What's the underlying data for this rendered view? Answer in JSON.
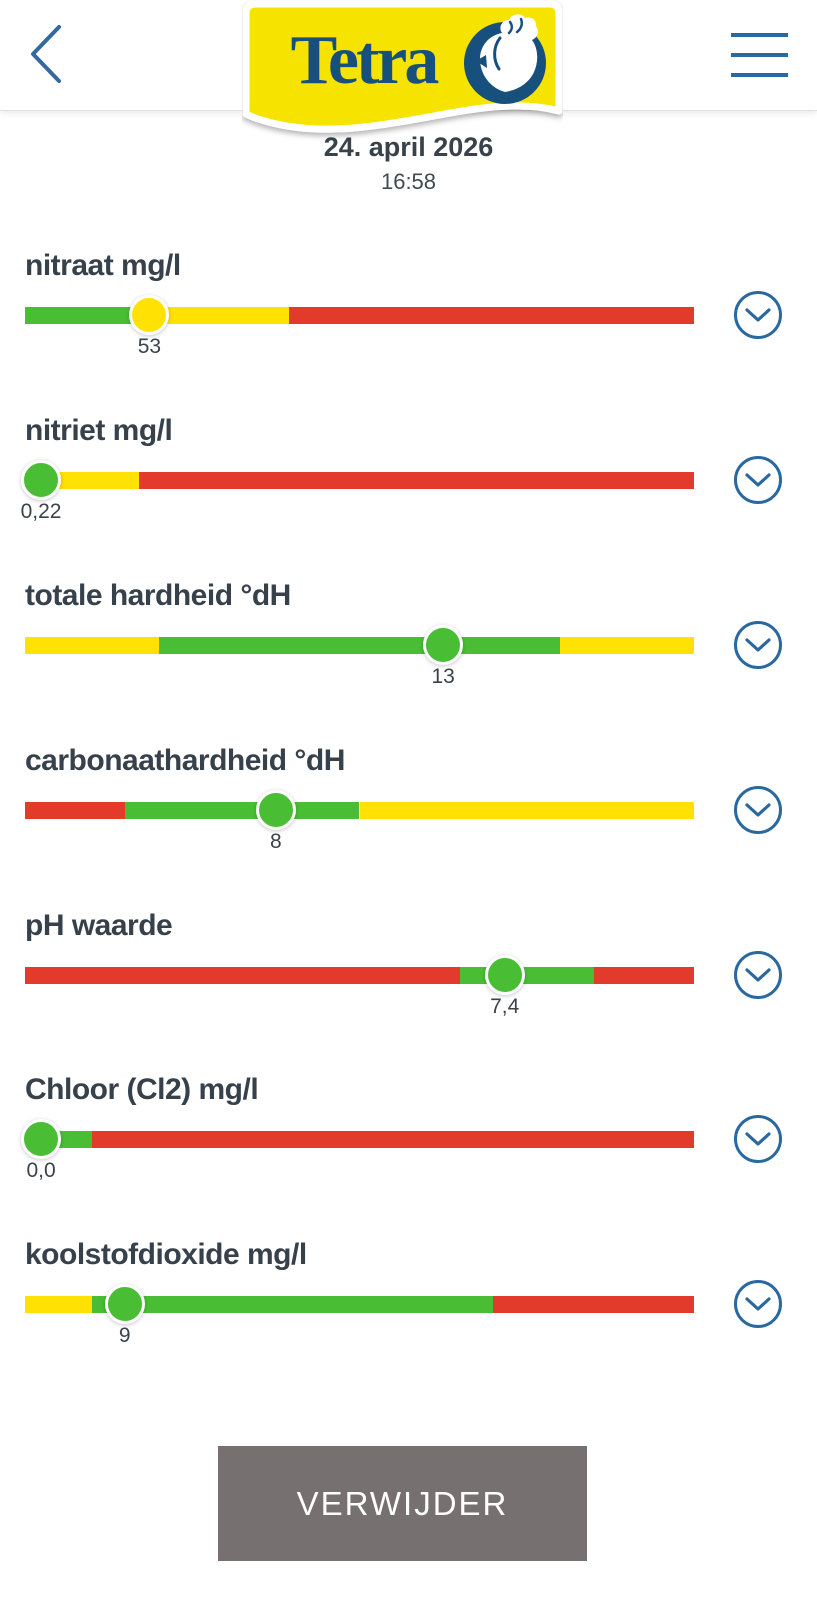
{
  "header": {
    "back_icon": "chevron-left",
    "menu_icon": "hamburger-menu",
    "logo": {
      "text": "Tetra",
      "fish_icon": "tetra-fish"
    }
  },
  "reading": {
    "date": "24. april 2026",
    "time": "16:58"
  },
  "colors": {
    "green": "#49be34",
    "yellow": "#ffe103",
    "red": "#e23a2b",
    "accent_blue": "#2a68a0",
    "logo_yellow": "#f6e400",
    "logo_blue": "#17507d",
    "button_gray": "#767070"
  },
  "parameters": [
    {
      "label": "nitraat mg/l",
      "value": "53",
      "marker_color": "yellow",
      "marker_percent": 18.6,
      "segments": [
        {
          "color": "green",
          "percent": 16
        },
        {
          "color": "yellow",
          "percent": 23.5
        },
        {
          "color": "red",
          "percent": 60.5
        }
      ]
    },
    {
      "label": "nitriet mg/l",
      "value": "0,22",
      "marker_color": "green",
      "marker_percent": 2.4,
      "segments": [
        {
          "color": "yellow",
          "percent": 17
        },
        {
          "color": "red",
          "percent": 83
        }
      ]
    },
    {
      "label": "totale hardheid °dH",
      "value": "13",
      "marker_color": "green",
      "marker_percent": 62.5,
      "segments": [
        {
          "color": "yellow",
          "percent": 20
        },
        {
          "color": "green",
          "percent": 60
        },
        {
          "color": "yellow",
          "percent": 20
        }
      ]
    },
    {
      "label": "carbonaathardheid °dH",
      "value": "8",
      "marker_color": "green",
      "marker_percent": 37.5,
      "segments": [
        {
          "color": "red",
          "percent": 15
        },
        {
          "color": "green",
          "percent": 35
        },
        {
          "color": "yellow",
          "percent": 50
        }
      ]
    },
    {
      "label": "pH waarde",
      "value": "7,4",
      "marker_color": "green",
      "marker_percent": 71.7,
      "segments": [
        {
          "color": "red",
          "percent": 65
        },
        {
          "color": "green",
          "percent": 20
        },
        {
          "color": "red",
          "percent": 15
        }
      ]
    },
    {
      "label": "Chloor (Cl2) mg/l",
      "value": "0,0",
      "marker_color": "green",
      "marker_percent": 2.4,
      "segments": [
        {
          "color": "green",
          "percent": 10
        },
        {
          "color": "red",
          "percent": 90
        }
      ]
    },
    {
      "label": "koolstofdioxide mg/l",
      "value": "9",
      "marker_color": "green",
      "marker_percent": 14.9,
      "segments": [
        {
          "color": "yellow",
          "percent": 10
        },
        {
          "color": "green",
          "percent": 60
        },
        {
          "color": "red",
          "percent": 30
        }
      ]
    }
  ],
  "actions": {
    "delete_label": "VERWIJDER"
  }
}
